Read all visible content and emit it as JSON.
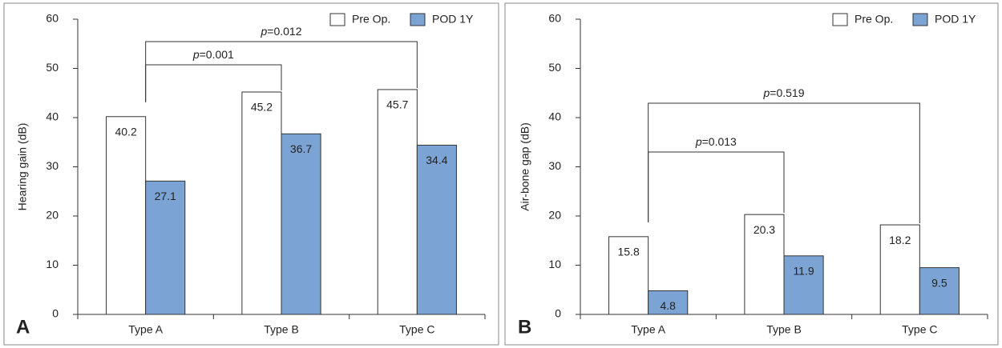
{
  "chart_data": [
    {
      "type": "bar",
      "panel": "A",
      "ylabel": "Hearing gain (dB)",
      "categories": [
        "Type A",
        "Type B",
        "Type C"
      ],
      "series": [
        {
          "name": "Pre Op.",
          "color": "#ffffff",
          "values": [
            40.2,
            45.2,
            45.7
          ]
        },
        {
          "name": "POD 1Y",
          "color": "#7ba4d4",
          "values": [
            27.1,
            36.7,
            34.4
          ]
        }
      ],
      "ylim": [
        0,
        60
      ],
      "yticks": [
        0,
        10,
        20,
        30,
        40,
        50,
        60
      ],
      "annotations": [
        "p=0.001",
        "p=0.012"
      ],
      "legend": "upper right"
    },
    {
      "type": "bar",
      "panel": "B",
      "ylabel": "Air-bone gap (dB)",
      "categories": [
        "Type A",
        "Type B",
        "Type C"
      ],
      "series": [
        {
          "name": "Pre Op.",
          "color": "#ffffff",
          "values": [
            15.8,
            20.3,
            18.2
          ]
        },
        {
          "name": "POD 1Y",
          "color": "#7ba4d4",
          "values": [
            4.8,
            11.9,
            9.5
          ]
        }
      ],
      "ylim": [
        0,
        60
      ],
      "yticks": [
        0,
        10,
        20,
        30,
        40,
        50,
        60
      ],
      "annotations": [
        "p=0.013",
        "p=0.519"
      ],
      "legend": "upper right"
    }
  ]
}
